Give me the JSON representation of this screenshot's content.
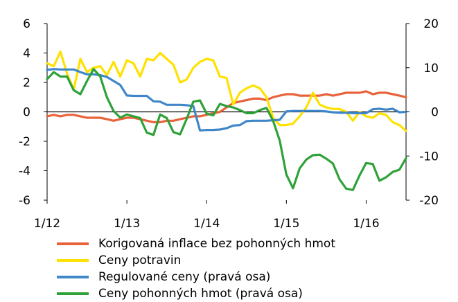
{
  "chart_data": {
    "type": "line",
    "x": [
      "1/12",
      "2/12",
      "3/12",
      "4/12",
      "5/12",
      "6/12",
      "7/12",
      "8/12",
      "9/12",
      "10/12",
      "11/12",
      "12/12",
      "1/13",
      "2/13",
      "3/13",
      "4/13",
      "5/13",
      "6/13",
      "7/13",
      "8/13",
      "9/13",
      "10/13",
      "11/13",
      "12/13",
      "1/14",
      "2/14",
      "3/14",
      "4/14",
      "5/14",
      "6/14",
      "7/14",
      "8/14",
      "9/14",
      "10/14",
      "11/14",
      "12/14",
      "1/15",
      "2/15",
      "3/15",
      "4/15",
      "5/15",
      "6/15",
      "7/15",
      "8/15",
      "9/15",
      "10/15",
      "11/15",
      "12/15",
      "1/16",
      "2/16",
      "3/16",
      "4/16",
      "5/16",
      "6/16",
      "7/16"
    ],
    "x_tick_labels": [
      "1/12",
      "1/13",
      "1/14",
      "1/15",
      "1/16"
    ],
    "left_axis": {
      "ylim": [
        -6,
        6
      ],
      "ticks": [
        "6",
        "4",
        "2",
        "0",
        "-2",
        "-4",
        "-6"
      ]
    },
    "right_axis": {
      "ylim": [
        -20,
        20
      ],
      "ticks": [
        "20",
        "10",
        "0",
        "-10",
        "-20"
      ]
    },
    "series": [
      {
        "name": "Korigovaná inflace bez pohonných hmot",
        "axis": "left",
        "color": "#e8623a",
        "values": [
          -0.3,
          -0.2,
          -0.3,
          -0.2,
          -0.2,
          -0.3,
          -0.4,
          -0.4,
          -0.4,
          -0.5,
          -0.6,
          -0.5,
          -0.4,
          -0.4,
          -0.5,
          -0.6,
          -0.7,
          -0.7,
          -0.6,
          -0.6,
          -0.5,
          -0.4,
          -0.3,
          -0.3,
          -0.2,
          -0.1,
          0.0,
          0.3,
          0.6,
          0.7,
          0.8,
          0.9,
          0.9,
          0.8,
          1.0,
          1.1,
          1.2,
          1.2,
          1.1,
          1.1,
          1.1,
          1.1,
          1.2,
          1.1,
          1.2,
          1.3,
          1.3,
          1.3,
          1.4,
          1.2,
          1.3,
          1.3,
          1.2,
          1.1,
          1.0
        ]
      },
      {
        "name": "Ceny potravin",
        "axis": "left",
        "color": "#ffe100",
        "values": [
          3.3,
          3.1,
          4.1,
          2.6,
          1.5,
          3.6,
          2.7,
          3.0,
          3.1,
          2.5,
          3.4,
          2.4,
          3.5,
          3.3,
          2.4,
          3.6,
          3.5,
          4.0,
          3.6,
          3.2,
          2.0,
          2.2,
          3.0,
          3.4,
          3.6,
          3.5,
          2.4,
          2.3,
          0.5,
          1.3,
          1.6,
          1.8,
          1.6,
          1.0,
          -0.4,
          -0.9,
          -0.9,
          -0.8,
          -0.3,
          0.3,
          1.3,
          0.5,
          0.3,
          0.2,
          0.2,
          0.0,
          -0.6,
          0.0,
          -0.3,
          -0.4,
          -0.1,
          -0.2,
          -0.7,
          -0.9,
          -1.3
        ]
      },
      {
        "name": "Regulované ceny (pravá osa)",
        "axis": "right",
        "color": "#3f87c8",
        "values": [
          9.5,
          9.7,
          9.6,
          9.6,
          9.6,
          9.0,
          8.5,
          8.5,
          8.3,
          7.9,
          7.0,
          6.1,
          3.7,
          3.6,
          3.6,
          3.6,
          2.4,
          2.3,
          1.6,
          1.6,
          1.6,
          1.5,
          1.3,
          -4.2,
          -4.1,
          -4.1,
          -4.0,
          -3.7,
          -3.1,
          -3.0,
          -2.1,
          -2.0,
          -2.0,
          -2.0,
          -1.9,
          -1.8,
          0.1,
          0.2,
          0.2,
          0.2,
          0.2,
          0.2,
          0.1,
          -0.1,
          -0.2,
          -0.2,
          -0.3,
          -0.3,
          -0.3,
          0.6,
          0.7,
          0.5,
          0.7,
          -0.1,
          0.0
        ]
      },
      {
        "name": "Ceny pohonných hmot (pravá osa)",
        "axis": "right",
        "color": "#2ea138",
        "values": [
          7.4,
          9.0,
          8.0,
          8.0,
          4.9,
          4.0,
          7.0,
          9.7,
          8.0,
          3.3,
          0.2,
          -1.3,
          -0.6,
          -1.0,
          -1.4,
          -4.7,
          -5.2,
          -0.6,
          -1.4,
          -4.6,
          -5.1,
          -1.6,
          2.3,
          2.6,
          -0.4,
          -0.8,
          1.8,
          1.3,
          1.0,
          0.4,
          -0.3,
          -0.3,
          0.4,
          0.9,
          -2.0,
          -6.5,
          -14.2,
          -17.3,
          -12.8,
          -10.8,
          -9.8,
          -9.7,
          -10.6,
          -11.7,
          -15.3,
          -17.4,
          -17.7,
          -14.4,
          -11.6,
          -11.8,
          -15.6,
          -14.8,
          -13.6,
          -13.1,
          -10.5
        ]
      }
    ]
  }
}
